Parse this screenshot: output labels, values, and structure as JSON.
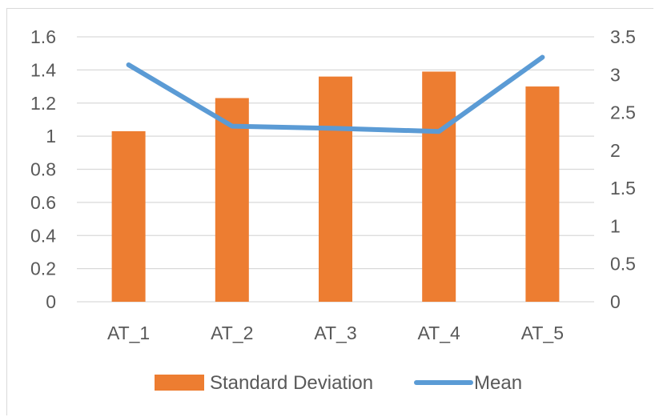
{
  "chart_data": {
    "type": "bar",
    "categories": [
      "AT_1",
      "AT_2",
      "AT_3",
      "AT_4",
      "AT_5"
    ],
    "series": [
      {
        "name": "Standard Deviation",
        "type": "bar",
        "axis": "left",
        "values": [
          1.03,
          1.23,
          1.36,
          1.39,
          1.3
        ]
      },
      {
        "name": "Mean",
        "type": "line",
        "axis": "right",
        "values": [
          3.13,
          2.32,
          2.29,
          2.25,
          3.23
        ]
      }
    ],
    "y_left": {
      "range": [
        0,
        1.6
      ],
      "step": 0.2,
      "ticks": [
        "0",
        "0.2",
        "0.4",
        "0.6",
        "0.8",
        "1",
        "1.2",
        "1.4",
        "1.6"
      ]
    },
    "y_right": {
      "range": [
        0,
        3.5
      ],
      "step": 0.5,
      "ticks": [
        "0",
        "0.5",
        "1",
        "1.5",
        "2",
        "2.5",
        "3",
        "3.5"
      ]
    },
    "grid": true,
    "legend": "bottom",
    "colors": {
      "bar": "#ED7D31",
      "line": "#5B9BD5",
      "grid": "#d9d9d9",
      "text": "#595959"
    }
  }
}
